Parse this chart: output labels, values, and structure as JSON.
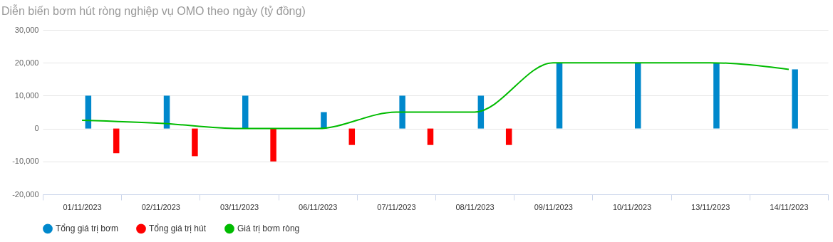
{
  "chart_data": {
    "type": "bar",
    "title": "Diễn biến bơm hút ròng nghiệp vụ OMO theo ngày (tỷ đồng)",
    "categories": [
      "01/11/2023",
      "02/11/2023",
      "03/11/2023",
      "06/11/2023",
      "07/11/2023",
      "08/11/2023",
      "09/11/2023",
      "10/11/2023",
      "13/11/2023",
      "14/11/2023"
    ],
    "series": [
      {
        "name": "Tổng giá trị bơm",
        "color": "#0088cc",
        "values": [
          10000,
          10000,
          10000,
          5000,
          10000,
          10000,
          20000,
          20000,
          20000,
          18000
        ]
      },
      {
        "name": "Tổng giá trị hút",
        "color": "#ff0000",
        "values": [
          -7500,
          -8400,
          -10000,
          -5000,
          -5000,
          -5000,
          null,
          null,
          null,
          null
        ]
      },
      {
        "name": "Giá trị bơm ròng",
        "type": "line",
        "color": "#00bb00",
        "values": [
          2500,
          1600,
          0,
          0,
          5000,
          5000,
          20000,
          20000,
          20000,
          18000
        ]
      }
    ],
    "ylim": [
      -20000,
      30000
    ],
    "yticks": [
      {
        "value": -20000,
        "label": "-20,000"
      },
      {
        "value": -10000,
        "label": "-10,000"
      },
      0,
      {
        "value": 10000,
        "label": "10,000"
      },
      {
        "value": 20000,
        "label": "20,000"
      },
      {
        "value": 30000,
        "label": "30,000"
      }
    ],
    "grid": "y",
    "legend": "bottom"
  }
}
